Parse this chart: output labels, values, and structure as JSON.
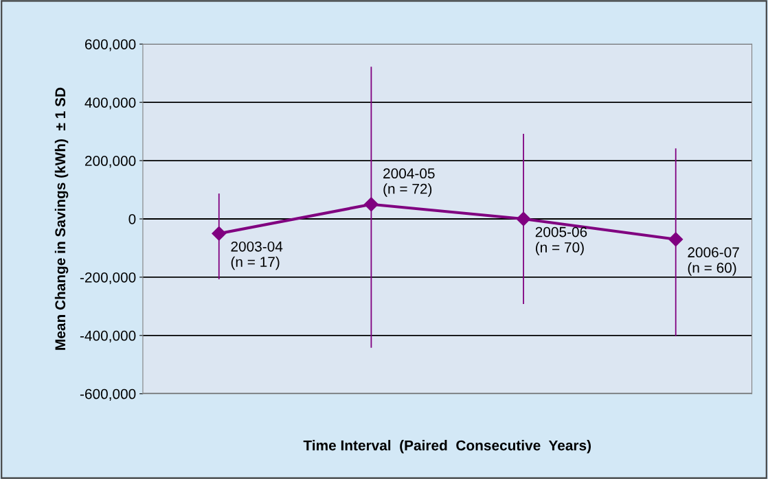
{
  "chart_data": {
    "type": "line",
    "xlabel": "Time Interval  (Paired  Consecutive  Years)",
    "ylabel": "Mean Change in Savings (kWh)  ± 1 SD",
    "categories": [
      null,
      null,
      null,
      null
    ],
    "series": [
      {
        "color": "#800080",
        "values": [
          -50000,
          50000,
          0,
          -70000
        ],
        "errors": [
          [
            -205000,
            85000
          ],
          [
            -440000,
            520000
          ],
          [
            -290000,
            290000
          ],
          [
            -400000,
            240000
          ]
        ]
      }
    ],
    "annotations": [
      "2003-04\n(n = 17)",
      "2004-05\n(n = 72)",
      "2005-06\n(n = 70)",
      "2006-07\n(n = 60)"
    ],
    "ylim": [
      -600000,
      600000
    ],
    "yticks": [
      {
        "value": -600000,
        "label": "-600,000"
      },
      {
        "value": -400000,
        "label": "-400,000"
      },
      {
        "value": -200000,
        "label": "-200,000"
      },
      0,
      {
        "value": 200000,
        "label": "200,000"
      },
      {
        "value": 400000,
        "label": "400,000"
      },
      {
        "value": 600000,
        "label": "600,000"
      }
    ],
    "grid": "y",
    "marker": "diamond",
    "line_style": "solid",
    "legend": false
  }
}
